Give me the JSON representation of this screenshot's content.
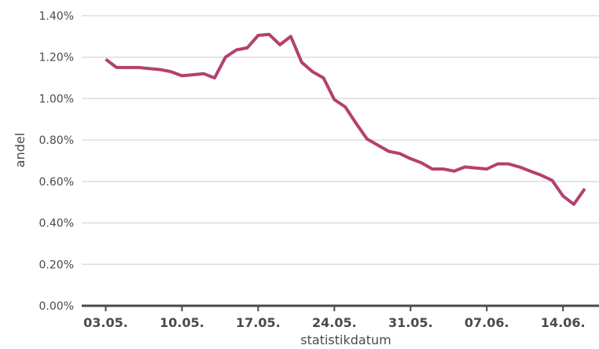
{
  "chart_data": {
    "type": "line",
    "xlabel": "statistikdatum",
    "ylabel": "andel",
    "ylim": [
      0,
      1.4
    ],
    "y_ticks": [
      "0.00%",
      "0.20%",
      "0.40%",
      "0.60%",
      "0.80%",
      "1.00%",
      "1.20%",
      "1.40%"
    ],
    "x_ticks": [
      "03.05.",
      "10.05.",
      "17.05.",
      "24.05.",
      "31.05.",
      "07.06.",
      "14.06."
    ],
    "grid": "horizontal",
    "series": [
      {
        "color": "#b5406f",
        "x": [
          "03.05.",
          "04.05.",
          "05.05.",
          "06.05.",
          "07.05.",
          "08.05.",
          "09.05.",
          "10.05.",
          "11.05.",
          "12.05.",
          "13.05.",
          "14.05.",
          "15.05.",
          "16.05.",
          "17.05.",
          "18.05.",
          "19.05.",
          "20.05.",
          "21.05.",
          "22.05.",
          "23.05.",
          "24.05.",
          "25.05.",
          "26.05.",
          "27.05.",
          "28.05.",
          "29.05.",
          "30.05.",
          "31.05.",
          "01.06.",
          "02.06.",
          "03.06.",
          "04.06.",
          "05.06.",
          "06.06.",
          "07.06.",
          "08.06.",
          "09.06.",
          "10.06.",
          "11.06.",
          "12.06.",
          "13.06.",
          "14.06.",
          "15.06.",
          "16.06."
        ],
        "values": [
          1.19,
          1.15,
          1.15,
          1.15,
          1.145,
          1.14,
          1.13,
          1.11,
          1.115,
          1.12,
          1.1,
          1.2,
          1.235,
          1.245,
          1.305,
          1.31,
          1.26,
          1.3,
          1.175,
          1.13,
          1.1,
          0.995,
          0.96,
          0.88,
          0.805,
          0.775,
          0.745,
          0.735,
          0.71,
          0.69,
          0.66,
          0.66,
          0.65,
          0.67,
          0.665,
          0.66,
          0.685,
          0.685,
          0.67,
          0.65,
          0.63,
          0.605,
          0.53,
          0.49,
          0.565
        ]
      }
    ]
  }
}
